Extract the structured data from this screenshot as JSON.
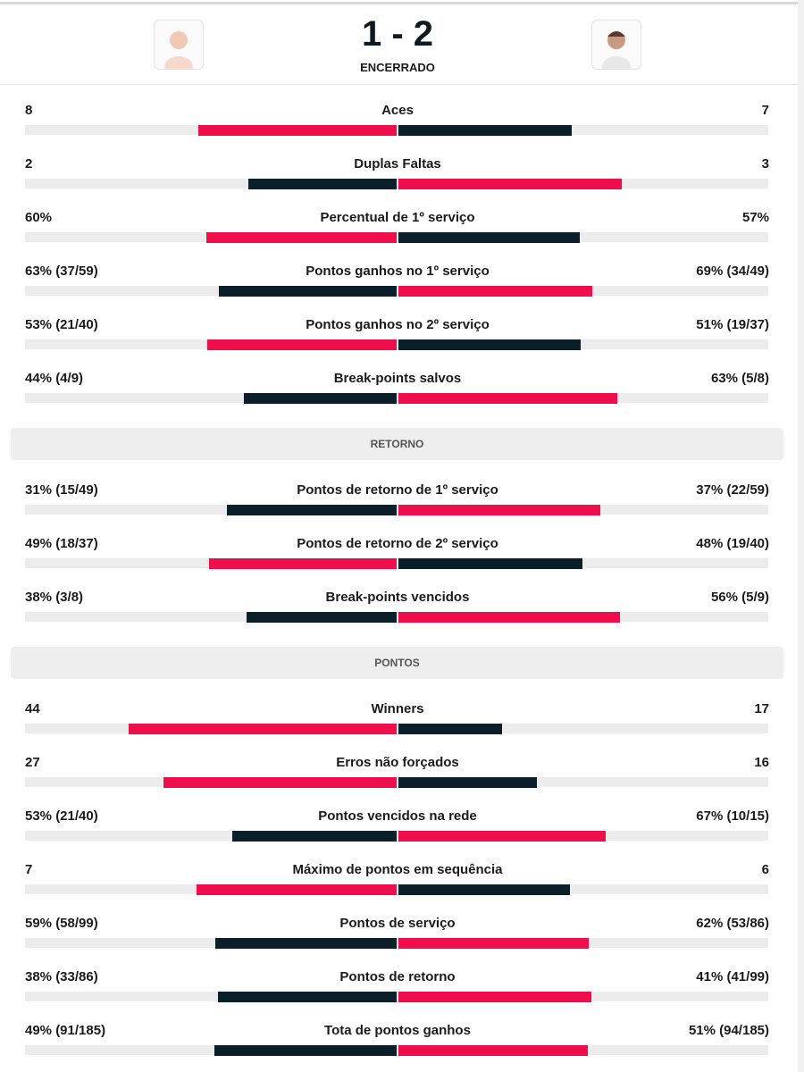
{
  "header": {
    "score": "1 - 2",
    "status": "ENCERRADO"
  },
  "sections": [
    {
      "rows": [
        {
          "label": "Aces",
          "left": "8",
          "right": "7",
          "left_value": 8,
          "right_value": 7
        },
        {
          "label": "Duplas Faltas",
          "left": "2",
          "right": "3",
          "left_value": 2,
          "right_value": 3
        },
        {
          "label": "Percentual de 1º serviço",
          "left": "60%",
          "right": "57%",
          "left_value": 60,
          "right_value": 57
        },
        {
          "label": "Pontos ganhos no 1º serviço",
          "left": "63% (37/59)",
          "right": "69% (34/49)",
          "left_value": 63,
          "right_value": 69
        },
        {
          "label": "Pontos ganhos no 2º serviço",
          "left": "53% (21/40)",
          "right": "51% (19/37)",
          "left_value": 53,
          "right_value": 51
        },
        {
          "label": "Break-points salvos",
          "left": "44% (4/9)",
          "right": "63% (5/8)",
          "left_value": 44,
          "right_value": 63
        }
      ]
    },
    {
      "title": "RETORNO",
      "rows": [
        {
          "label": "Pontos de retorno de 1º serviço",
          "left": "31% (15/49)",
          "right": "37% (22/59)",
          "left_value": 31,
          "right_value": 37
        },
        {
          "label": "Pontos de retorno de 2º serviço",
          "left": "49% (18/37)",
          "right": "48% (19/40)",
          "left_value": 49,
          "right_value": 48
        },
        {
          "label": "Break-points vencidos",
          "left": "38% (3/8)",
          "right": "56% (5/9)",
          "left_value": 38,
          "right_value": 56
        }
      ]
    },
    {
      "title": "PONTOS",
      "rows": [
        {
          "label": "Winners",
          "left": "44",
          "right": "17",
          "left_value": 44,
          "right_value": 17
        },
        {
          "label": "Erros não forçados",
          "left": "27",
          "right": "16",
          "left_value": 27,
          "right_value": 16
        },
        {
          "label": "Pontos vencidos na rede",
          "left": "53% (21/40)",
          "right": "67% (10/15)",
          "left_value": 53,
          "right_value": 67
        },
        {
          "label": "Máximo de pontos em sequência",
          "left": "7",
          "right": "6",
          "left_value": 7,
          "right_value": 6
        },
        {
          "label": "Pontos de serviço",
          "left": "59% (58/99)",
          "right": "62% (53/86)",
          "left_value": 59,
          "right_value": 62
        },
        {
          "label": "Pontos de retorno",
          "left": "38% (33/86)",
          "right": "41% (41/99)",
          "left_value": 38,
          "right_value": 41
        },
        {
          "label": "Tota de pontos ganhos",
          "left": "49% (91/185)",
          "right": "51% (94/185)",
          "left_value": 49,
          "right_value": 51
        }
      ]
    }
  ]
}
